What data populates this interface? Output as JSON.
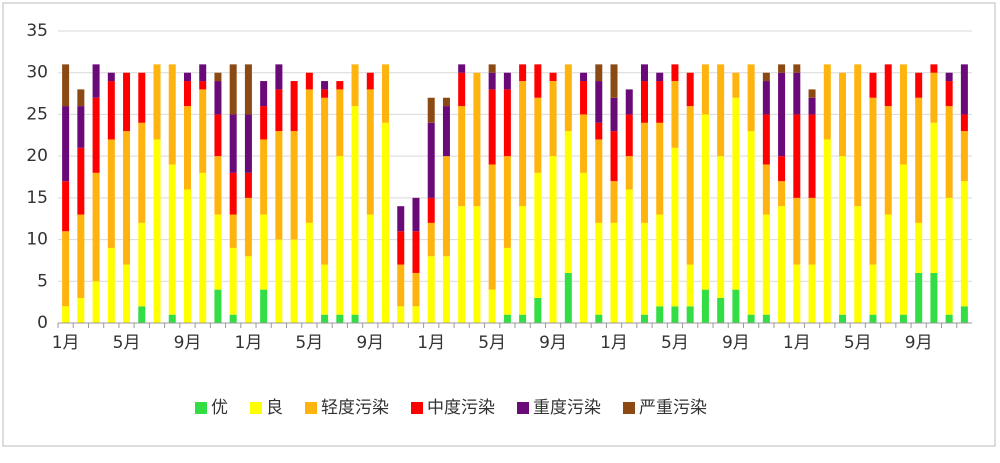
{
  "chart_data": {
    "type": "stacked_bar",
    "categories": [
      "1月",
      null,
      null,
      null,
      "5月",
      null,
      null,
      null,
      "9月",
      null,
      null,
      null,
      "1月",
      null,
      null,
      null,
      "5月",
      null,
      null,
      null,
      "9月",
      null,
      null,
      null,
      "1月",
      null,
      null,
      null,
      "5月",
      null,
      null,
      null,
      "9月",
      null,
      null,
      null,
      "1月",
      null,
      null,
      null,
      "5月",
      null,
      null,
      null,
      "9月",
      null,
      null,
      null,
      "1月",
      null,
      null,
      null,
      "5月",
      null,
      null,
      null,
      "9月",
      null,
      null,
      null
    ],
    "series": [
      {
        "name": "优",
        "color": "#33dd44",
        "values": [
          0,
          0,
          0,
          0,
          0,
          2,
          0,
          1,
          0,
          0,
          4,
          1,
          0,
          4,
          0,
          0,
          0,
          1,
          1,
          1,
          0,
          0,
          0,
          0,
          0,
          0,
          0,
          0,
          0,
          1,
          1,
          3,
          0,
          6,
          0,
          1,
          0,
          0,
          1,
          2,
          2,
          2,
          4,
          3,
          4,
          1,
          1,
          0,
          0,
          0,
          0,
          1,
          0,
          1,
          0,
          1,
          6,
          6,
          1,
          2
        ]
      },
      {
        "name": "良",
        "color": "#ffff00",
        "values": [
          2,
          3,
          5,
          9,
          7,
          10,
          22,
          18,
          16,
          18,
          9,
          8,
          8,
          9,
          10,
          10,
          12,
          6,
          19,
          25,
          13,
          24,
          2,
          2,
          8,
          8,
          14,
          14,
          4,
          8,
          13,
          15,
          20,
          17,
          18,
          11,
          12,
          16,
          11,
          11,
          19,
          5,
          21,
          17,
          23,
          22,
          12,
          14,
          7,
          7,
          22,
          19,
          14,
          6,
          13,
          18,
          6,
          18,
          14,
          15
        ]
      },
      {
        "name": "轻度污染",
        "color": "#ffb30f",
        "values": [
          9,
          10,
          13,
          13,
          16,
          12,
          9,
          12,
          10,
          10,
          7,
          4,
          7,
          9,
          13,
          13,
          16,
          20,
          8,
          5,
          15,
          7,
          5,
          4,
          4,
          12,
          12,
          16,
          15,
          11,
          15,
          9,
          9,
          8,
          7,
          10,
          5,
          4,
          12,
          11,
          8,
          19,
          6,
          11,
          3,
          8,
          6,
          3,
          8,
          8,
          9,
          10,
          17,
          20,
          13,
          12,
          15,
          6,
          11,
          6
        ]
      },
      {
        "name": "中度污染",
        "color": "#ff0000",
        "values": [
          6,
          8,
          9,
          7,
          7,
          6,
          0,
          0,
          3,
          1,
          5,
          5,
          3,
          4,
          5,
          6,
          2,
          1,
          1,
          0,
          2,
          0,
          4,
          5,
          3,
          0,
          4,
          0,
          9,
          8,
          2,
          4,
          1,
          0,
          4,
          2,
          6,
          5,
          5,
          5,
          2,
          4,
          0,
          0,
          0,
          0,
          6,
          3,
          10,
          10,
          0,
          0,
          0,
          3,
          5,
          0,
          3,
          1,
          3,
          2
        ]
      },
      {
        "name": "重度污染",
        "color": "#6a0a78",
        "values": [
          9,
          5,
          4,
          1,
          0,
          0,
          0,
          0,
          1,
          2,
          4,
          7,
          7,
          3,
          3,
          0,
          0,
          1,
          0,
          0,
          0,
          0,
          3,
          4,
          9,
          6,
          1,
          0,
          2,
          2,
          0,
          0,
          0,
          0,
          1,
          5,
          4,
          3,
          2,
          1,
          0,
          0,
          0,
          0,
          0,
          0,
          4,
          10,
          5,
          2,
          0,
          0,
          0,
          0,
          0,
          0,
          0,
          0,
          1,
          6
        ]
      },
      {
        "name": "严重污染",
        "color": "#8b4a14",
        "values": [
          5,
          2,
          0,
          0,
          0,
          0,
          0,
          0,
          0,
          0,
          1,
          6,
          6,
          0,
          0,
          0,
          0,
          0,
          0,
          0,
          0,
          0,
          0,
          0,
          3,
          1,
          0,
          0,
          1,
          0,
          0,
          0,
          0,
          0,
          0,
          2,
          4,
          0,
          0,
          0,
          0,
          0,
          0,
          0,
          0,
          0,
          1,
          1,
          1,
          1,
          0,
          0,
          0,
          0,
          0,
          0,
          0,
          0,
          0,
          0
        ]
      }
    ],
    "ylim": [
      0,
      35
    ],
    "yticks": [
      0,
      5,
      10,
      15,
      20,
      25,
      30,
      35
    ],
    "grid": true,
    "legend": "bottom"
  }
}
